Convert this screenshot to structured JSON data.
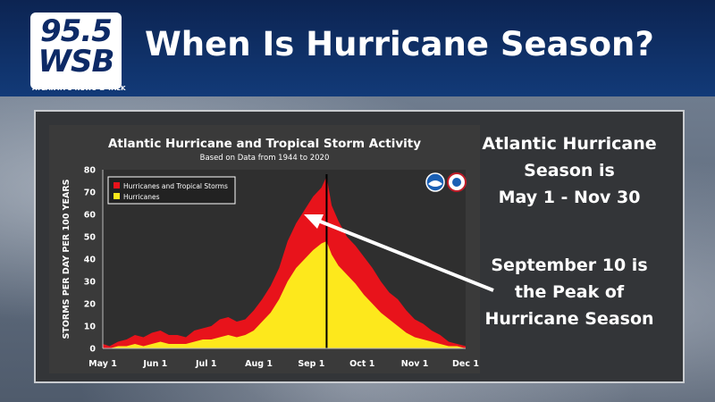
{
  "header": {
    "logo_frequency": "95.5",
    "logo_callsign": "WSB",
    "logo_tagline": "ATLANTA'S NEWS & TALK",
    "title": "When Is Hurricane Season?"
  },
  "side_notes": {
    "season_lines": [
      "Atlantic Hurricane",
      "Season is",
      "May 1 - Nov 30"
    ],
    "peak_lines": [
      "September 10 is",
      "the Peak of",
      "Hurricane Season"
    ]
  },
  "colors": {
    "tropical_storms": "#e8131b",
    "hurricanes": "#fde81c",
    "peak_line": "#000000",
    "arrow": "#ffffff"
  },
  "chart_data": {
    "type": "area",
    "title": "Atlantic Hurricane and Tropical Storm Activity",
    "subtitle": "Based on Data from 1944 to 2020",
    "ylabel": "STORMS PER DAY PER 100 YEARS",
    "xlabel": "",
    "ylim": [
      0,
      80
    ],
    "yticks": [
      0,
      10,
      20,
      30,
      40,
      50,
      60,
      70,
      80
    ],
    "x_domain_days": [
      1,
      215
    ],
    "xticks": [
      {
        "label": "May 1",
        "day": 1
      },
      {
        "label": "Jun 1",
        "day": 32
      },
      {
        "label": "Jul 1",
        "day": 62
      },
      {
        "label": "Aug 1",
        "day": 93
      },
      {
        "label": "Sep 1",
        "day": 124
      },
      {
        "label": "Oct 1",
        "day": 154
      },
      {
        "label": "Nov 1",
        "day": 185
      },
      {
        "label": "Dec 1",
        "day": 215
      }
    ],
    "legend_placement": "top-left",
    "grid": false,
    "peak_marker_day": 133,
    "series": [
      {
        "name": "Hurricanes and Tropical Storms",
        "color": "#e8131b",
        "x": [
          1,
          5,
          10,
          15,
          20,
          25,
          30,
          35,
          40,
          45,
          50,
          55,
          60,
          65,
          70,
          75,
          80,
          85,
          90,
          95,
          100,
          105,
          110,
          115,
          120,
          125,
          130,
          133,
          136,
          140,
          145,
          150,
          155,
          160,
          165,
          170,
          175,
          180,
          185,
          190,
          195,
          200,
          205,
          210,
          215
        ],
        "values": [
          2,
          1,
          3,
          4,
          6,
          5,
          7,
          8,
          6,
          6,
          5,
          8,
          9,
          10,
          13,
          14,
          12,
          13,
          17,
          22,
          28,
          36,
          48,
          56,
          62,
          68,
          72,
          77,
          64,
          57,
          50,
          46,
          41,
          36,
          30,
          25,
          22,
          17,
          13,
          11,
          8,
          6,
          3,
          2,
          1
        ]
      },
      {
        "name": "Hurricanes",
        "color": "#fde81c",
        "x": [
          1,
          5,
          10,
          15,
          20,
          25,
          30,
          35,
          40,
          45,
          50,
          55,
          60,
          65,
          70,
          75,
          80,
          85,
          90,
          95,
          100,
          105,
          110,
          115,
          120,
          125,
          130,
          133,
          136,
          140,
          145,
          150,
          155,
          160,
          165,
          170,
          175,
          180,
          185,
          190,
          195,
          200,
          205,
          210,
          215
        ],
        "values": [
          0,
          0,
          1,
          1,
          2,
          1,
          2,
          3,
          2,
          2,
          2,
          3,
          4,
          4,
          5,
          6,
          5,
          6,
          8,
          12,
          16,
          22,
          30,
          36,
          40,
          44,
          47,
          48,
          42,
          37,
          33,
          29,
          24,
          20,
          16,
          13,
          10,
          7,
          5,
          4,
          3,
          2,
          1,
          1,
          0
        ]
      }
    ]
  }
}
